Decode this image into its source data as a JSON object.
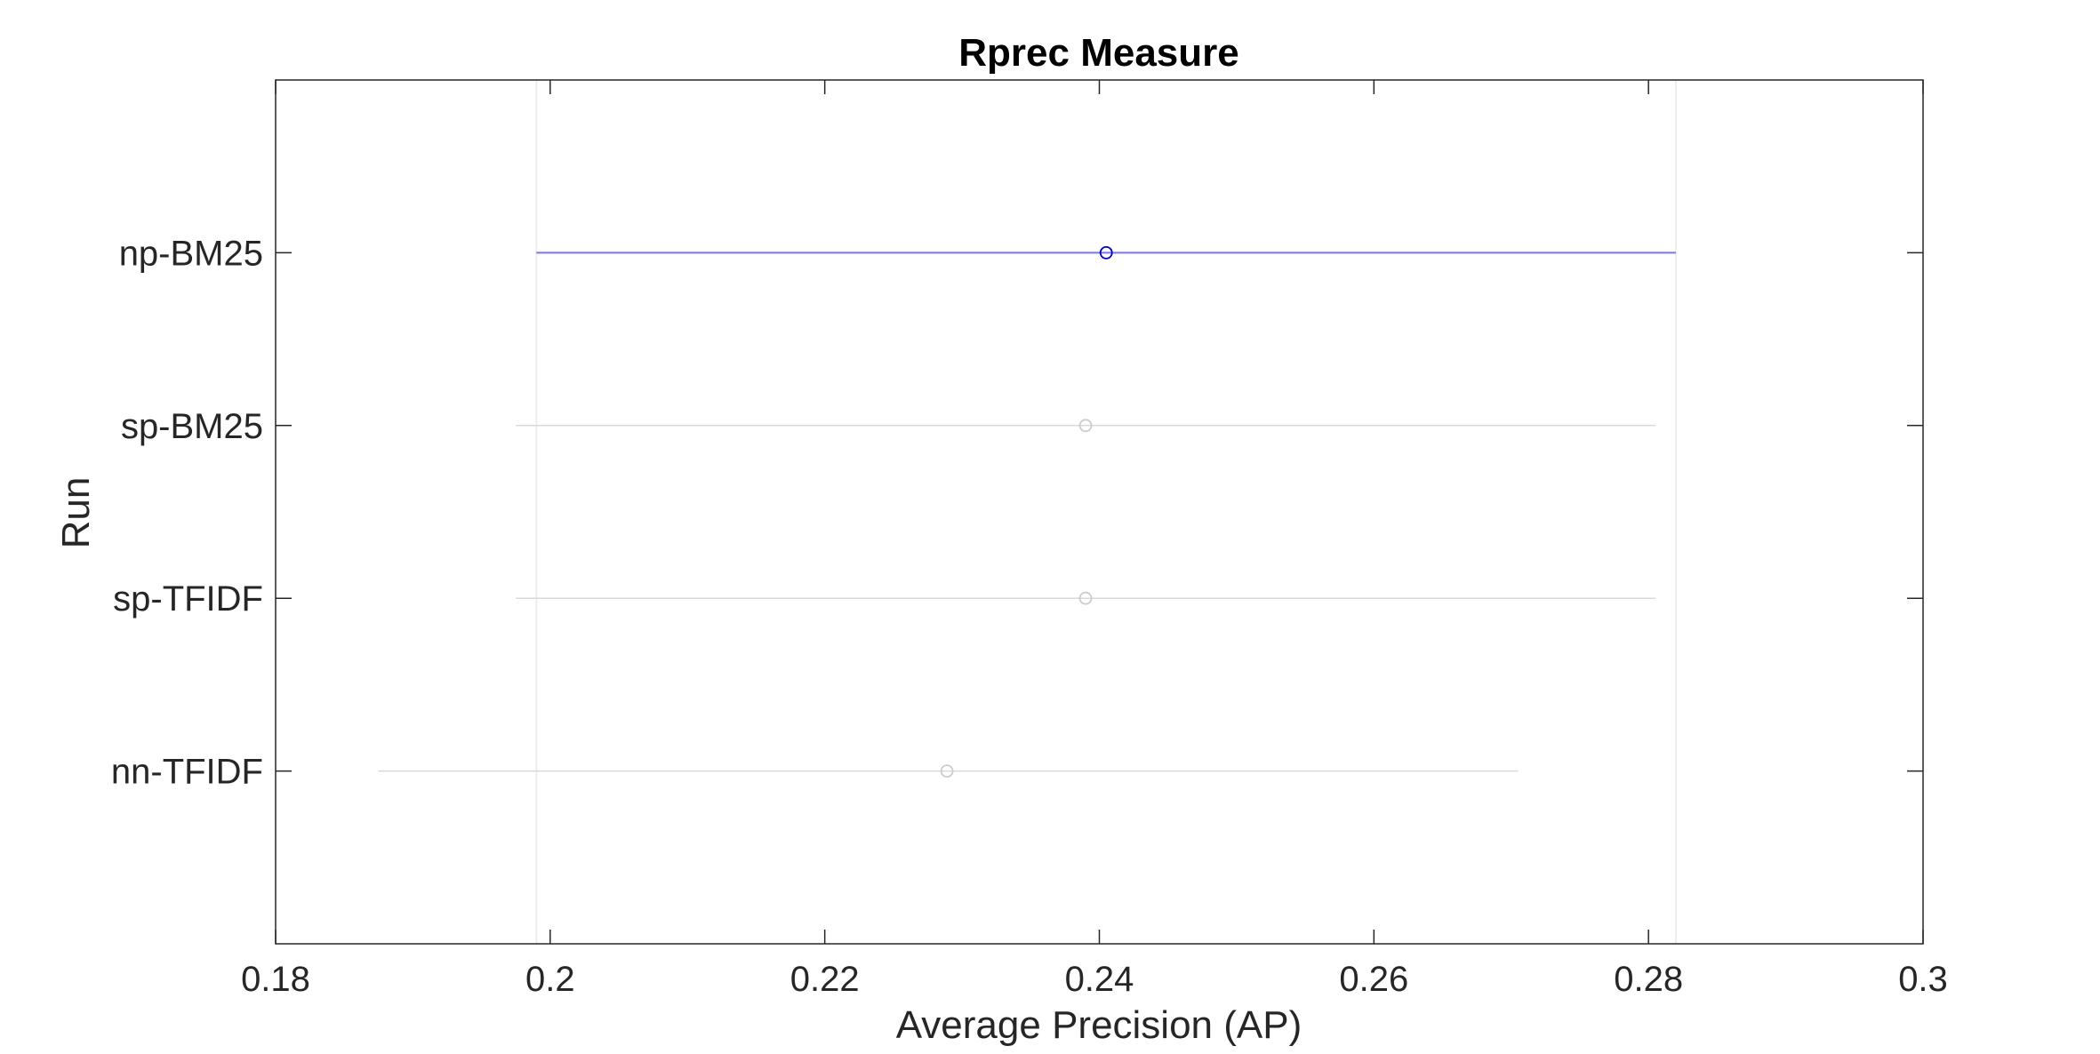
{
  "chart_data": {
    "type": "scatter",
    "title": "Rprec Measure",
    "xlabel": "Average Precision (AP)",
    "ylabel": "Run",
    "xlim": [
      0.18,
      0.3
    ],
    "x_ticks": [
      "0.18",
      "0.2",
      "0.22",
      "0.24",
      "0.26",
      "0.28",
      "0.3"
    ],
    "x_tick_values": [
      0.18,
      0.2,
      0.22,
      0.24,
      0.26,
      0.28,
      0.3
    ],
    "grid": false,
    "runs": [
      {
        "label": "np-BM25",
        "mean": 0.2405,
        "low": 0.199,
        "high": 0.282,
        "highlighted": true
      },
      {
        "label": "sp-BM25",
        "mean": 0.239,
        "low": 0.1975,
        "high": 0.2805,
        "highlighted": false
      },
      {
        "label": "sp-TFIDF",
        "mean": 0.239,
        "low": 0.1975,
        "high": 0.2805,
        "highlighted": false
      },
      {
        "label": "nn-TFIDF",
        "mean": 0.2289,
        "low": 0.1875,
        "high": 0.2705,
        "highlighted": false
      }
    ],
    "colors": {
      "highlight": "#0000cc",
      "highlight_line": "#7777ee",
      "muted": "#cccccc",
      "muted_line": "#d9d9d9",
      "axis": "#262626",
      "reference_line": "#ededed"
    }
  }
}
